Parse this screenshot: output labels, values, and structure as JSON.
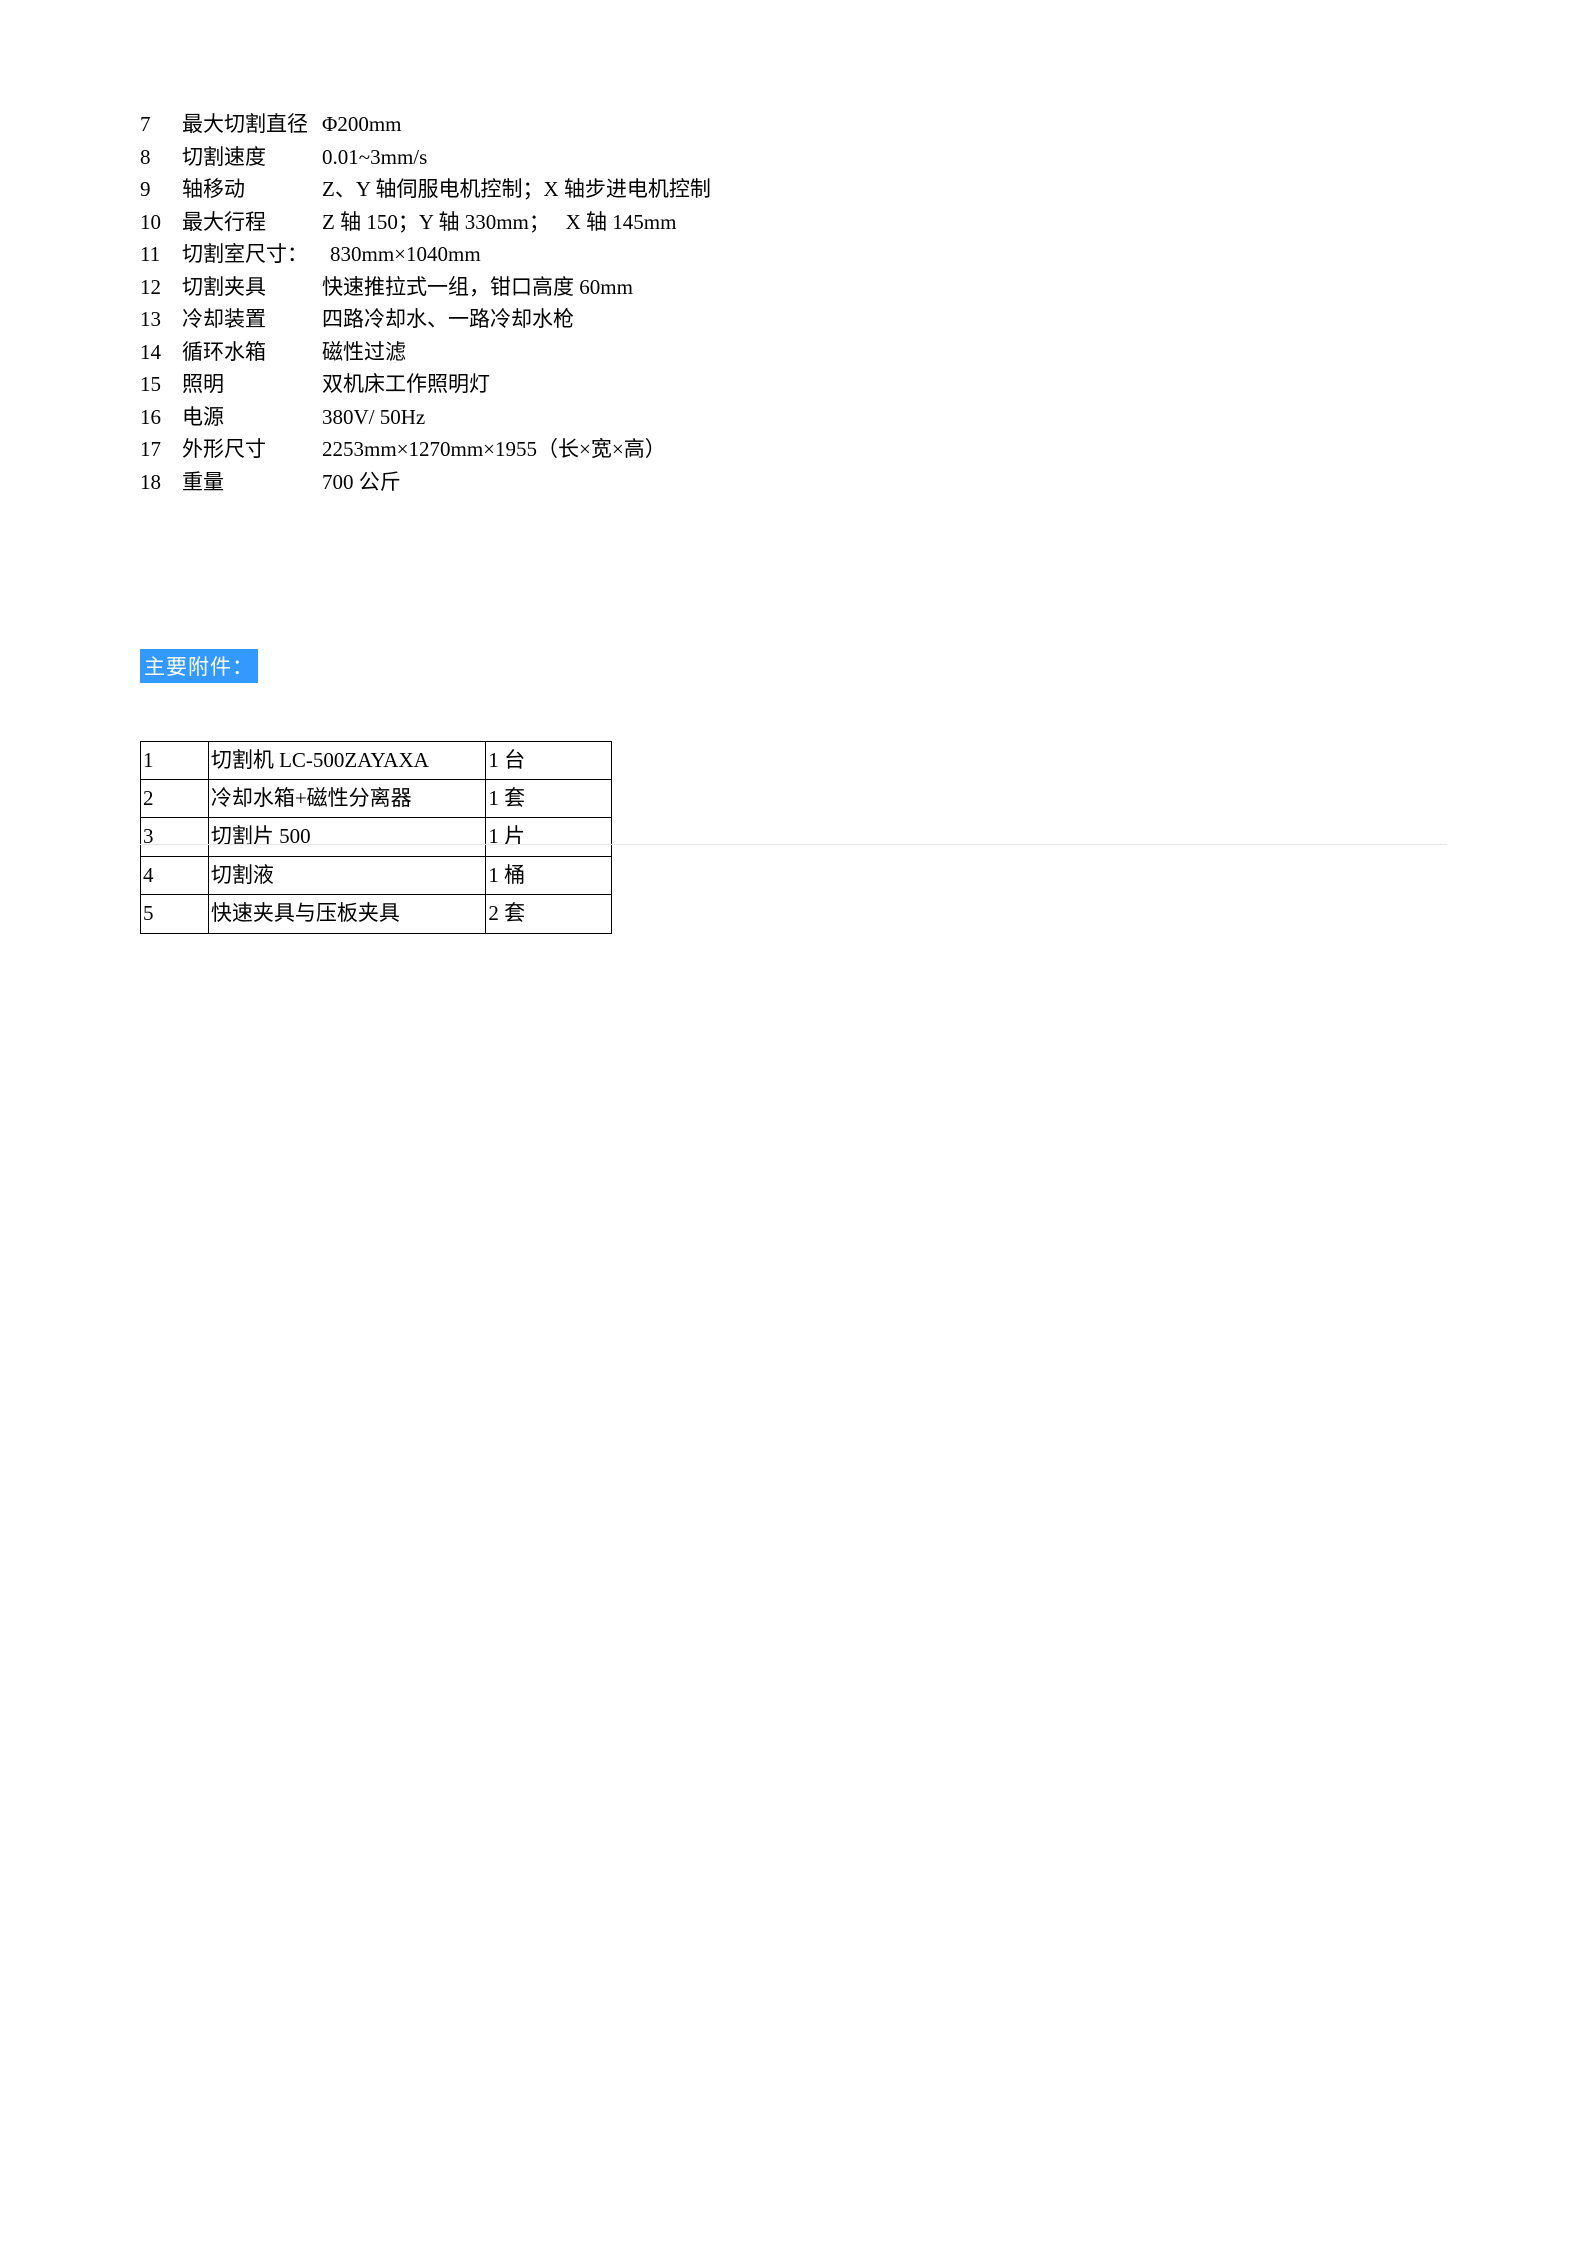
{
  "specs": {
    "rows": [
      {
        "num": "7",
        "label": "最大切割直径",
        "value": "Φ200mm",
        "label_wrap": true
      },
      {
        "num": "8",
        "label": "切割速度",
        "value": "0.01~3mm/s"
      },
      {
        "num": "9",
        "label": "轴移动",
        "value": "Z、Y 轴伺服电机控制；X 轴步进电机控制",
        "value_wrap": true
      },
      {
        "num": "10",
        "label": "最大行程",
        "value": "Z 轴 150；Y 轴 330mm；   X 轴 145mm"
      },
      {
        "num": "11",
        "label": "切割室尺寸：",
        "value": "830mm×1040mm",
        "label_wide": true
      },
      {
        "num": "12",
        "label": "切割夹具",
        "value": "快速推拉式一组，钳口高度 60mm"
      },
      {
        "num": "13",
        "label": "冷却装置",
        "value": "四路冷却水、一路冷却水枪"
      },
      {
        "num": "14",
        "label": "循环水箱",
        "value": "磁性过滤"
      },
      {
        "num": "15",
        "label": "照明",
        "value": "双机床工作照明灯"
      },
      {
        "num": "16",
        "label": "电源",
        "value": "380V/ 50Hz"
      },
      {
        "num": "17",
        "label": "外形尺寸",
        "value": "2253mm×1270mm×1955（长×宽×高）"
      },
      {
        "num": "18",
        "label": "重量",
        "value": "700 公斤"
      }
    ]
  },
  "section_header": "主要附件：",
  "accessories": {
    "rows": [
      {
        "num": "1",
        "desc": "切割机 LC-500ZAYAXA",
        "qty": "1 台"
      },
      {
        "num": "2",
        "desc": "冷却水箱+磁性分离器",
        "qty": "1 套"
      },
      {
        "num": "3",
        "desc": "切割片 500",
        "qty": "1 片"
      },
      {
        "num": "4",
        "desc": "切割液",
        "qty": "1 桶"
      },
      {
        "num": "5",
        "desc": "快速夹具与压板夹具",
        "qty": "2 套"
      }
    ]
  },
  "colors": {
    "header_bg": "#3399ff",
    "header_text": "#ffffff",
    "text": "#000000",
    "border": "#000000",
    "light_border": "#e5e5e5"
  }
}
